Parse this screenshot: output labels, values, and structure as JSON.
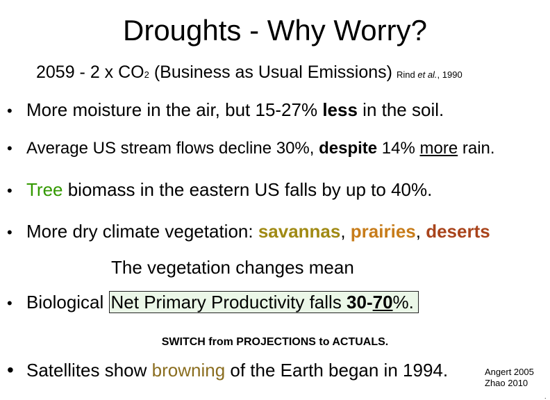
{
  "title": "Droughts - Why Worry?",
  "subtitle": {
    "prefix": "2059  -  2 x CO",
    "subscript": "2",
    "rest": "  (Business as Usual Emissions)",
    "cite_name": "Rind ",
    "cite_etal": "et al.",
    "cite_year": ", 1990"
  },
  "bullets": {
    "bullet_glyph": "•",
    "b1": {
      "a": "More moisture in the air, but 15-27% ",
      "bold": "less",
      "b": " in the soil."
    },
    "b2": {
      "a": "Average US stream flows decline 30%, ",
      "bold": "despite",
      "b": " 14% ",
      "under": "more",
      "c": " rain."
    },
    "b3": {
      "green": "Tree",
      "b": " biomass in the eastern US falls by up to 40%."
    },
    "b4": {
      "a": "More dry climate vegetation: ",
      "savannas": "savannas",
      "c1": ", ",
      "prairies": "prairies",
      "c2": ", ",
      "deserts": "deserts"
    },
    "middle": "The vegetation changes mean",
    "b5": {
      "a": "Biological ",
      "box_a": "Net Primary Productivity falls ",
      "box_b1": "30-",
      "box_b2": "70",
      "box_c": "%."
    },
    "switch": "SWITCH from PROJECTIONS to ACTUALS.",
    "b6": {
      "a": "Satellites show ",
      "brown": "browning",
      "b": " of the Earth began in 1994."
    },
    "cite2_line1": "Angert 2005",
    "cite2_line2": "Zhao 2010",
    "corner_mark": "."
  },
  "colors": {
    "green": "#339900",
    "savannas": "#a08a14",
    "prairies": "#c77c1a",
    "deserts": "#a9441c",
    "browning": "#8a6d1f",
    "highlight_box": "#ebf7e8"
  }
}
